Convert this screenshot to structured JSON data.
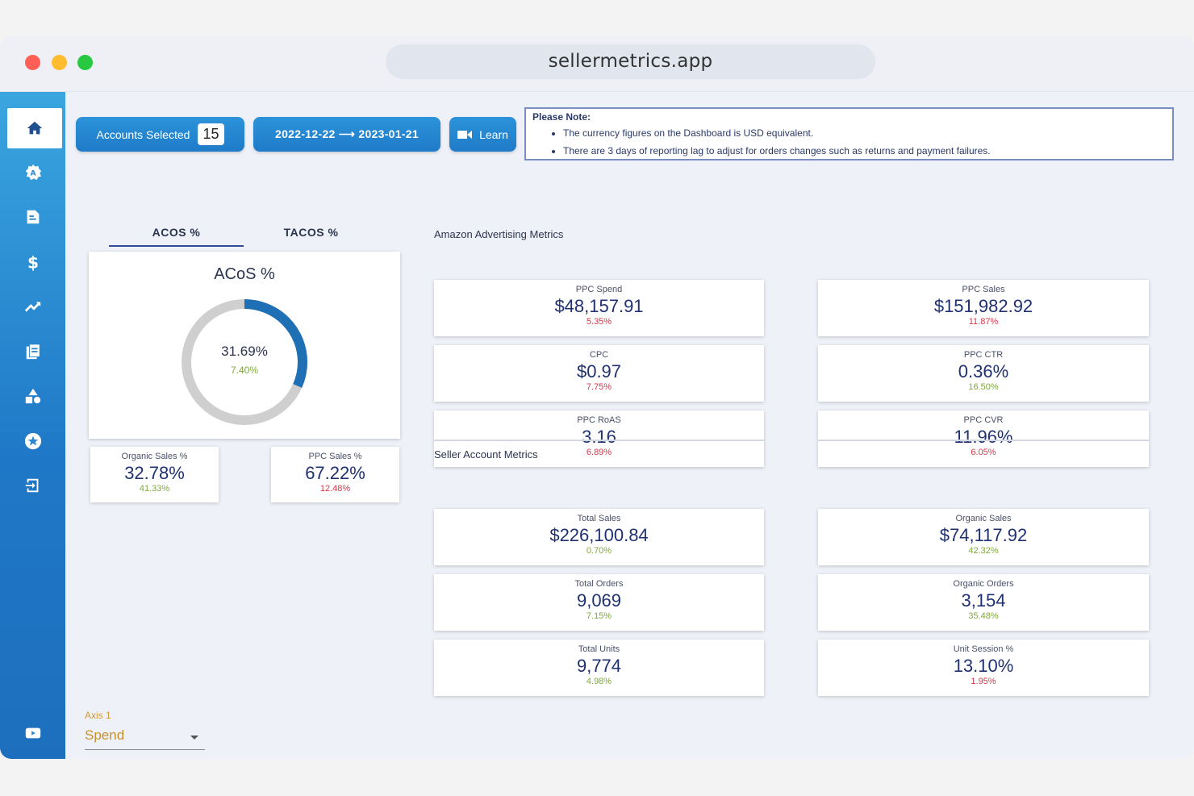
{
  "browser": {
    "url": "sellermetrics.app"
  },
  "sidebar": {
    "items": [
      {
        "icon": "home-icon"
      },
      {
        "icon": "gear-a-icon"
      },
      {
        "icon": "document-icon"
      },
      {
        "icon": "dollar-icon"
      },
      {
        "icon": "trend-icon"
      },
      {
        "icon": "report-icon"
      },
      {
        "icon": "shapes-icon"
      },
      {
        "icon": "star-icon"
      },
      {
        "icon": "logout-icon"
      },
      {
        "icon": "video-icon"
      }
    ]
  },
  "toolbar": {
    "accounts_label": "Accounts Selected",
    "accounts_count": "15",
    "date_range": "2022-12-22 ⟶ 2023-01-21",
    "learn_label": "Learn"
  },
  "note": {
    "title": "Please Note:",
    "items": [
      "The currency figures on the Dashboard is USD equivalent.",
      "There are 3 days of reporting lag to adjust for orders changes such as returns and payment failures."
    ]
  },
  "tabs": {
    "acos": "ACOS %",
    "tacos": "TACOS %"
  },
  "acos_card": {
    "title": "ACoS %",
    "value": "31.69%",
    "change": "7.40%",
    "fraction": 0.3169
  },
  "small_cards": {
    "organic": {
      "label": "Organic Sales %",
      "value": "32.78%",
      "change": "41.33%"
    },
    "ppc": {
      "label": "PPC Sales %",
      "value": "67.22%",
      "change": "12.48%"
    }
  },
  "sections": {
    "advertising": "Amazon Advertising Metrics",
    "seller": "Seller Account Metrics"
  },
  "advertising_metrics": [
    {
      "label": "PPC Spend",
      "value": "$48,157.91",
      "change": "5.35%",
      "trend": "neg"
    },
    {
      "label": "PPC Sales",
      "value": "$151,982.92",
      "change": "11.87%",
      "trend": "neg"
    },
    {
      "label": "CPC",
      "value": "$0.97",
      "change": "7.75%",
      "trend": "neg"
    },
    {
      "label": "PPC CTR",
      "value": "0.36%",
      "change": "16.50%",
      "trend": "pos"
    },
    {
      "label": "PPC RoAS",
      "value": "3.16",
      "change": "6.89%",
      "trend": "neg"
    },
    {
      "label": "PPC CVR",
      "value": "11.96%",
      "change": "6.05%",
      "trend": "neg"
    }
  ],
  "seller_metrics": [
    {
      "label": "Total Sales",
      "value": "$226,100.84",
      "change": "0.70%",
      "trend": "pos"
    },
    {
      "label": "Organic Sales",
      "value": "$74,117.92",
      "change": "42.32%",
      "trend": "pos"
    },
    {
      "label": "Total Orders",
      "value": "9,069",
      "change": "7.15%",
      "trend": "pos"
    },
    {
      "label": "Organic Orders",
      "value": "3,154",
      "change": "35.48%",
      "trend": "pos"
    },
    {
      "label": "Total Units",
      "value": "9,774",
      "change": "4.98%",
      "trend": "pos"
    },
    {
      "label": "Unit Session %",
      "value": "13.10%",
      "change": "1.95%",
      "trend": "neg"
    }
  ],
  "axis": {
    "label": "Axis 1",
    "selected": "Spend"
  },
  "colors": {
    "accent": "#1f7bc9",
    "positive": "#7fa83b",
    "negative": "#d8364a",
    "donut_fill": "#1f6fb5",
    "donut_track": "#cfcfcf"
  }
}
